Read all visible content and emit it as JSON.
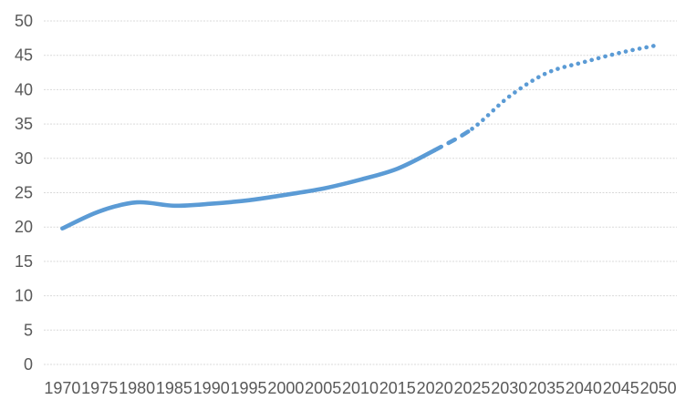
{
  "chart_data": {
    "type": "line",
    "categories": [
      "1970",
      "1975",
      "1980",
      "1985",
      "1990",
      "1995",
      "2000",
      "2005",
      "2010",
      "2015",
      "2020",
      "2025",
      "2030",
      "2035",
      "2040",
      "2045",
      "2050"
    ],
    "series": [
      {
        "name": "solid-line",
        "line_style": "solid",
        "categories": [
          "1970",
          "1975",
          "1980",
          "1985",
          "1990",
          "1995",
          "2000",
          "2005",
          "2010",
          "2015",
          "2020"
        ],
        "values": [
          19.8,
          22.3,
          23.6,
          23.1,
          23.4,
          23.9,
          24.7,
          25.6,
          26.9,
          28.5,
          31.2
        ]
      },
      {
        "name": "dotted-line",
        "line_style": "dotted",
        "categories": [
          "2020",
          "2025",
          "2030",
          "2035",
          "2040",
          "2045",
          "2050"
        ],
        "values": [
          31.2,
          34.3,
          39.0,
          42.4,
          44.0,
          45.4,
          46.5
        ]
      }
    ],
    "y_ticks": [
      0,
      5,
      10,
      15,
      20,
      25,
      30,
      35,
      40,
      45,
      50
    ],
    "ylim": [
      0,
      50
    ],
    "grid": true,
    "legend": "none",
    "colors": {
      "line": "#5B9BD5",
      "gridline": "#D9D9D9",
      "tick_label": "#595959",
      "background": "#FFFFFF"
    }
  }
}
